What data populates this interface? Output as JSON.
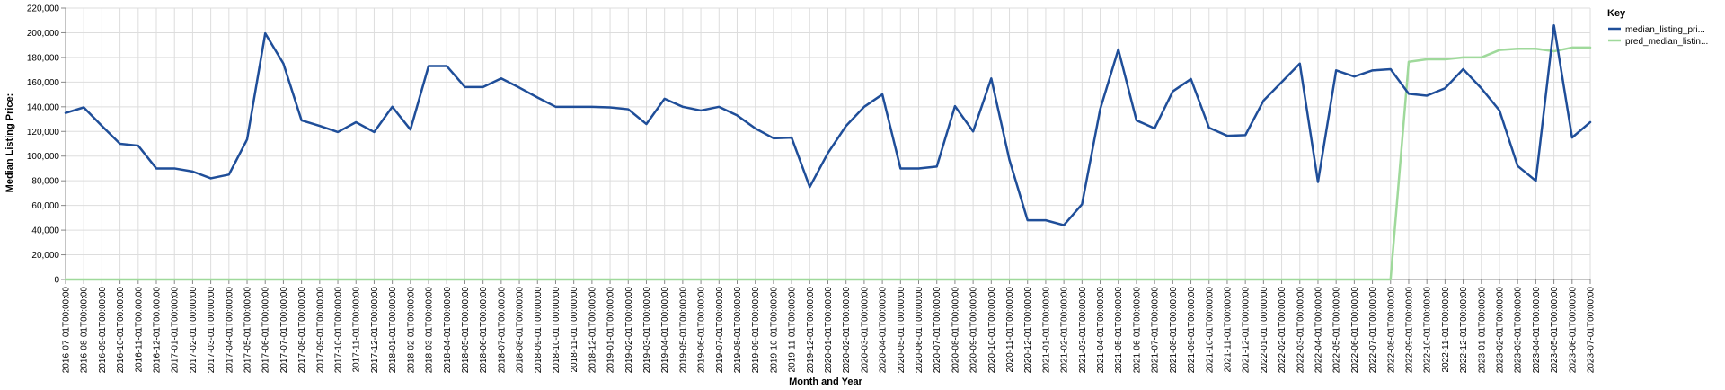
{
  "chart_data": {
    "type": "line",
    "xlabel": "Month and Year",
    "ylabel": "Median Listing Price:",
    "ylim": [
      0,
      220000
    ],
    "yticks": [
      0,
      20000,
      40000,
      60000,
      80000,
      100000,
      120000,
      140000,
      160000,
      180000,
      200000,
      220000
    ],
    "ytick_labels": [
      "0",
      "20,000",
      "40,000",
      "60,000",
      "80,000",
      "100,000",
      "120,000",
      "140,000",
      "160,000",
      "180,000",
      "200,000",
      "220,000"
    ],
    "grid": true,
    "legend": {
      "title": "Key",
      "position": "right",
      "entries": [
        "median_listing_pri...",
        "pred_median_listin..."
      ]
    },
    "categories": [
      "2016-07-01T00:00:00",
      "2016-08-01T00:00:00",
      "2016-09-01T00:00:00",
      "2016-10-01T00:00:00",
      "2016-11-01T00:00:00",
      "2016-12-01T00:00:00",
      "2017-01-01T00:00:00",
      "2017-02-01T00:00:00",
      "2017-03-01T00:00:00",
      "2017-04-01T00:00:00",
      "2017-05-01T00:00:00",
      "2017-06-01T00:00:00",
      "2017-07-01T00:00:00",
      "2017-08-01T00:00:00",
      "2017-09-01T00:00:00",
      "2017-10-01T00:00:00",
      "2017-11-01T00:00:00",
      "2017-12-01T00:00:00",
      "2018-01-01T00:00:00",
      "2018-02-01T00:00:00",
      "2018-03-01T00:00:00",
      "2018-04-01T00:00:00",
      "2018-05-01T00:00:00",
      "2018-06-01T00:00:00",
      "2018-07-01T00:00:00",
      "2018-08-01T00:00:00",
      "2018-09-01T00:00:00",
      "2018-10-01T00:00:00",
      "2018-11-01T00:00:00",
      "2018-12-01T00:00:00",
      "2019-01-01T00:00:00",
      "2019-02-01T00:00:00",
      "2019-03-01T00:00:00",
      "2019-04-01T00:00:00",
      "2019-05-01T00:00:00",
      "2019-06-01T00:00:00",
      "2019-07-01T00:00:00",
      "2019-08-01T00:00:00",
      "2019-09-01T00:00:00",
      "2019-10-01T00:00:00",
      "2019-11-01T00:00:00",
      "2019-12-01T00:00:00",
      "2020-01-01T00:00:00",
      "2020-02-01T00:00:00",
      "2020-03-01T00:00:00",
      "2020-04-01T00:00:00",
      "2020-05-01T00:00:00",
      "2020-06-01T00:00:00",
      "2020-07-01T00:00:00",
      "2020-08-01T00:00:00",
      "2020-09-01T00:00:00",
      "2020-10-01T00:00:00",
      "2020-11-01T00:00:00",
      "2020-12-01T00:00:00",
      "2021-01-01T00:00:00",
      "2021-02-01T00:00:00",
      "2021-03-01T00:00:00",
      "2021-04-01T00:00:00",
      "2021-05-01T00:00:00",
      "2021-06-01T00:00:00",
      "2021-07-01T00:00:00",
      "2021-08-01T00:00:00",
      "2021-09-01T00:00:00",
      "2021-10-01T00:00:00",
      "2021-11-01T00:00:00",
      "2021-12-01T00:00:00",
      "2022-01-01T00:00:00",
      "2022-02-01T00:00:00",
      "2022-03-01T00:00:00",
      "2022-04-01T00:00:00",
      "2022-05-01T00:00:00",
      "2022-06-01T00:00:00",
      "2022-07-01T00:00:00",
      "2022-08-01T00:00:00",
      "2022-09-01T00:00:00",
      "2022-10-01T00:00:00",
      "2022-11-01T00:00:00",
      "2022-12-01T00:00:00",
      "2023-01-01T00:00:00",
      "2023-02-01T00:00:00",
      "2023-03-01T00:00:00",
      "2023-04-01T00:00:00",
      "2023-05-01T00:00:00",
      "2023-06-01T00:00:00",
      "2023-07-01T00:00:00"
    ],
    "series": [
      {
        "name": "median_listing_pri...",
        "color": "#1f4e99",
        "values": [
          135000,
          139500,
          124500,
          110000,
          108500,
          90000,
          90000,
          87500,
          82000,
          85000,
          113500,
          199500,
          175000,
          129000,
          124500,
          119500,
          127500,
          119500,
          140000,
          121500,
          173000,
          173000,
          156000,
          156000,
          163000,
          155500,
          147500,
          140000,
          140000,
          140000,
          139500,
          138000,
          126000,
          146500,
          140000,
          137000,
          140000,
          133000,
          122500,
          114500,
          115000,
          75000,
          102500,
          124500,
          140000,
          150000,
          90000,
          90000,
          91500,
          140500,
          120000,
          163000,
          97000,
          48000,
          48000,
          44000,
          61000,
          138000,
          186500,
          129000,
          122500,
          152500,
          162500,
          123000,
          116500,
          117000,
          145000,
          160000,
          175000,
          79000,
          169500,
          164500,
          169500,
          170500,
          150500,
          149000,
          155000,
          170500,
          155000,
          137000,
          92000,
          80000,
          206000,
          115000,
          127500
        ]
      },
      {
        "name": "pred_median_listin...",
        "color": "#9fd99b",
        "values": [
          0,
          0,
          0,
          0,
          0,
          0,
          0,
          0,
          0,
          0,
          0,
          0,
          0,
          0,
          0,
          0,
          0,
          0,
          0,
          0,
          0,
          0,
          0,
          0,
          0,
          0,
          0,
          0,
          0,
          0,
          0,
          0,
          0,
          0,
          0,
          0,
          0,
          0,
          0,
          0,
          0,
          0,
          0,
          0,
          0,
          0,
          0,
          0,
          0,
          0,
          0,
          0,
          0,
          0,
          0,
          0,
          0,
          0,
          0,
          0,
          0,
          0,
          0,
          0,
          0,
          0,
          0,
          0,
          0,
          0,
          0,
          0,
          0,
          0,
          176500,
          178500,
          178500,
          180000,
          180000,
          186000,
          187000,
          187000,
          185000,
          188000,
          188000
        ]
      }
    ]
  }
}
